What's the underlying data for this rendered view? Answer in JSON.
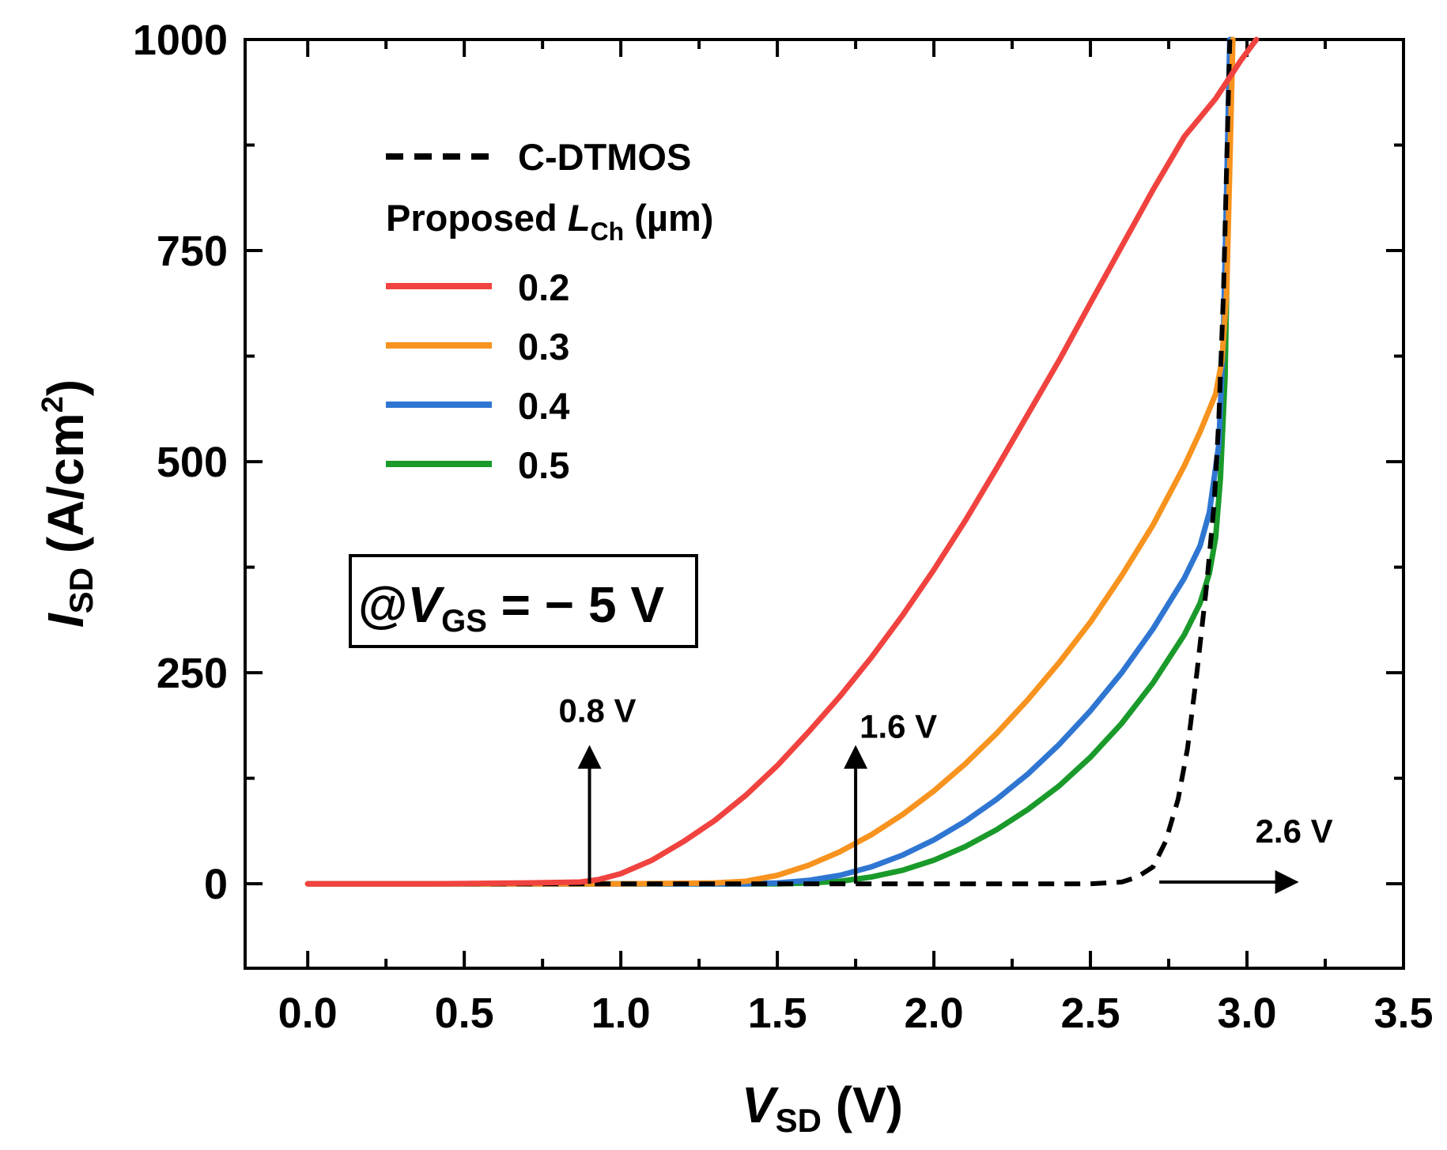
{
  "chart_data": {
    "type": "line",
    "xlabel": {
      "main": "V",
      "sub": "SD",
      "unit": " (V)"
    },
    "ylabel": {
      "main": "I",
      "sub": "SD",
      "unit_pre": " (A/cm",
      "unit_sup": "2",
      "unit_post": ")"
    },
    "xlim": [
      -0.2,
      3.5
    ],
    "ylim": [
      -100,
      1000
    ],
    "x_ticks": [
      0.0,
      0.5,
      1.0,
      1.5,
      2.0,
      2.5,
      3.0,
      3.5
    ],
    "x_tick_labels": [
      "0.0",
      "0.5",
      "1.0",
      "1.5",
      "2.0",
      "2.5",
      "3.0",
      "3.5"
    ],
    "y_ticks": [
      0,
      250,
      500,
      750,
      1000
    ],
    "y_tick_labels": [
      "0",
      "250",
      "500",
      "750",
      "1000"
    ],
    "grid": false,
    "legend": {
      "placement": "top-left",
      "header": {
        "prefix": "Proposed ",
        "italic": "L",
        "sub": "Ch",
        "suffix": " (µm)"
      }
    },
    "series": [
      {
        "name": "C-DTMOS",
        "color": "#000000",
        "dash": true,
        "x": [
          0.0,
          1.0,
          2.0,
          2.5,
          2.6,
          2.65,
          2.7,
          2.74,
          2.78,
          2.81,
          2.84,
          2.87,
          2.895,
          2.91,
          2.925,
          2.935,
          2.945
        ],
        "y": [
          0,
          0,
          0,
          0,
          2,
          8,
          20,
          50,
          100,
          160,
          250,
          350,
          450,
          550,
          700,
          850,
          1000
        ]
      },
      {
        "name": "0.2",
        "color": "#f0433f",
        "dash": false,
        "x": [
          0.0,
          0.4,
          0.7,
          0.87,
          0.93,
          1.0,
          1.1,
          1.2,
          1.3,
          1.4,
          1.5,
          1.6,
          1.7,
          1.8,
          1.9,
          2.0,
          2.1,
          2.2,
          2.3,
          2.4,
          2.5,
          2.6,
          2.7,
          2.8,
          2.9,
          2.98,
          3.03
        ],
        "y": [
          0,
          0,
          1,
          2,
          5,
          12,
          28,
          50,
          75,
          105,
          140,
          180,
          222,
          268,
          318,
          372,
          430,
          492,
          556,
          620,
          688,
          755,
          822,
          885,
          930,
          975,
          1000
        ]
      },
      {
        "name": "0.3",
        "color": "#f7931e",
        "dash": false,
        "x": [
          0.0,
          1.0,
          1.3,
          1.4,
          1.5,
          1.6,
          1.7,
          1.8,
          1.9,
          2.0,
          2.1,
          2.2,
          2.3,
          2.4,
          2.5,
          2.6,
          2.7,
          2.8,
          2.85,
          2.9,
          2.92,
          2.935,
          2.945,
          2.955
        ],
        "y": [
          0,
          0,
          1,
          3,
          10,
          22,
          38,
          58,
          82,
          110,
          142,
          178,
          218,
          262,
          310,
          365,
          425,
          495,
          535,
          580,
          620,
          700,
          850,
          1000
        ]
      },
      {
        "name": "0.4",
        "color": "#2f76d2",
        "dash": false,
        "x": [
          0.0,
          1.4,
          1.5,
          1.6,
          1.7,
          1.8,
          1.9,
          2.0,
          2.1,
          2.2,
          2.3,
          2.4,
          2.5,
          2.6,
          2.7,
          2.8,
          2.85,
          2.88,
          2.91,
          2.925,
          2.935,
          2.945
        ],
        "y": [
          0,
          0,
          1,
          4,
          10,
          20,
          34,
          52,
          74,
          100,
          130,
          165,
          205,
          250,
          302,
          362,
          400,
          440,
          520,
          650,
          820,
          1000
        ]
      },
      {
        "name": "0.5",
        "color": "#1a9a2a",
        "dash": false,
        "x": [
          0.0,
          1.5,
          1.6,
          1.7,
          1.8,
          1.9,
          2.0,
          2.1,
          2.2,
          2.3,
          2.4,
          2.5,
          2.6,
          2.7,
          2.8,
          2.85,
          2.88,
          2.9,
          2.915,
          2.93,
          2.94,
          2.95
        ],
        "y": [
          0,
          0,
          1,
          3,
          8,
          16,
          28,
          44,
          64,
          88,
          116,
          150,
          190,
          238,
          295,
          332,
          368,
          410,
          480,
          600,
          800,
          1000
        ]
      }
    ],
    "annotations": [
      {
        "text": "0.8 V",
        "arrow_from": [
          0.9,
          0
        ],
        "arrow_to": [
          0.9,
          140
        ],
        "direction": "up"
      },
      {
        "text": "1.6 V",
        "arrow_from": [
          1.75,
          0
        ],
        "arrow_to": [
          1.75,
          140
        ],
        "direction": "up"
      },
      {
        "text": "2.6 V",
        "arrow_from": [
          2.72,
          2
        ],
        "arrow_to": [
          3.1,
          2
        ],
        "direction": "right"
      }
    ],
    "condition_box": {
      "prefix": "@",
      "italic": "V",
      "sub": "GS",
      "suffix": " = − 5 V"
    }
  }
}
